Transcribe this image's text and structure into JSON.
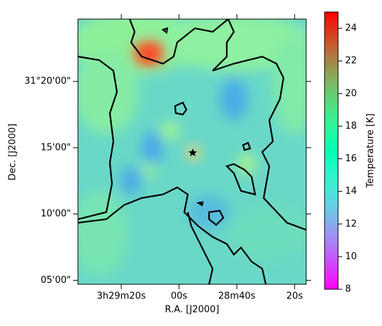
{
  "chart_data": {
    "type": "heatmap",
    "xlabel": "R.A. [J2000]",
    "ylabel": "Dec. [J2000]",
    "xlim": [
      12575,
      12496
    ],
    "xticks": [
      {
        "value": 12560,
        "label": "3h29m20s"
      },
      {
        "value": 12540,
        "label": "00s"
      },
      {
        "value": 12520,
        "label": "28m40s"
      },
      {
        "value": 12500,
        "label": "20s"
      }
    ],
    "ylim": [
      1864.7,
      1884.7
    ],
    "yticks": [
      {
        "value": 1880,
        "label": "31°20'00\""
      },
      {
        "value": 1875,
        "label": "15'00\""
      },
      {
        "value": 1870,
        "label": "10'00\""
      },
      {
        "value": 1865,
        "label": "05'00\""
      }
    ],
    "colorbar": {
      "label": "Temperature [K]",
      "colormap": "rainbow",
      "lim": [
        8,
        25
      ],
      "ticks": [
        8,
        10,
        12,
        14,
        16,
        18,
        20,
        22,
        24
      ]
    }
  }
}
